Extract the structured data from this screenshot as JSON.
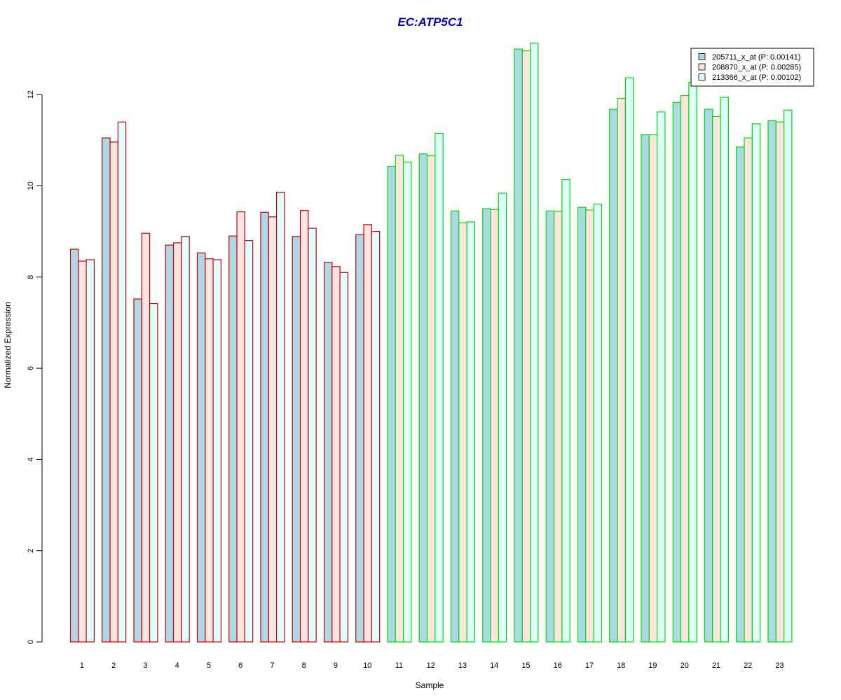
{
  "chart_data": {
    "type": "bar",
    "title": "EC:ATP5C1",
    "xlabel": "Sample",
    "ylabel": "Normalized Expression",
    "ylim": [
      0,
      13.2
    ],
    "yticks": [
      "0",
      "2",
      "4",
      "6",
      "8",
      "10",
      "12"
    ],
    "grid": false,
    "legend_position": "top-right",
    "categories": [
      "1",
      "2",
      "3",
      "4",
      "5",
      "6",
      "7",
      "8",
      "9",
      "10",
      "11",
      "12",
      "13",
      "14",
      "15",
      "16",
      "17",
      "18",
      "19",
      "20",
      "21",
      "22",
      "23"
    ],
    "group_border_colors": [
      "#cc0000",
      "#cc0000",
      "#cc0000",
      "#cc0000",
      "#cc0000",
      "#cc0000",
      "#cc0000",
      "#cc0000",
      "#cc0000",
      "#cc0000",
      "#00dd00",
      "#00dd00",
      "#00dd00",
      "#00dd00",
      "#00dd00",
      "#00dd00",
      "#00dd00",
      "#00dd00",
      "#00dd00",
      "#00dd00",
      "#00dd00",
      "#00dd00",
      "#00dd00"
    ],
    "title_color": "#0000cc",
    "series": [
      {
        "name": "205711_x_at (P: 0.00141)",
        "fill": "#add8e6",
        "values": [
          8.61,
          11.05,
          7.52,
          8.7,
          8.53,
          8.9,
          9.42,
          8.89,
          8.32,
          8.93,
          10.43,
          10.7,
          9.45,
          9.5,
          13.0,
          9.45,
          9.53,
          11.68,
          11.12,
          11.83,
          11.68,
          10.85,
          11.43
        ]
      },
      {
        "name": "208870_x_at (P: 0.00285)",
        "fill": "#ffe4e1",
        "values": [
          8.35,
          10.96,
          8.96,
          8.75,
          8.4,
          9.43,
          9.32,
          9.46,
          8.23,
          9.15,
          10.67,
          10.66,
          9.19,
          9.48,
          12.96,
          9.44,
          9.47,
          11.92,
          11.12,
          11.98,
          11.52,
          11.05,
          11.4
        ]
      },
      {
        "name": "213366_x_at (P: 0.00102)",
        "fill": "#e0ffff",
        "values": [
          8.38,
          11.4,
          7.42,
          8.89,
          8.38,
          8.8,
          9.86,
          9.07,
          8.1,
          9.0,
          10.52,
          11.15,
          9.21,
          9.84,
          13.13,
          10.14,
          9.6,
          12.37,
          11.62,
          12.27,
          11.94,
          11.36,
          11.66
        ]
      }
    ]
  }
}
